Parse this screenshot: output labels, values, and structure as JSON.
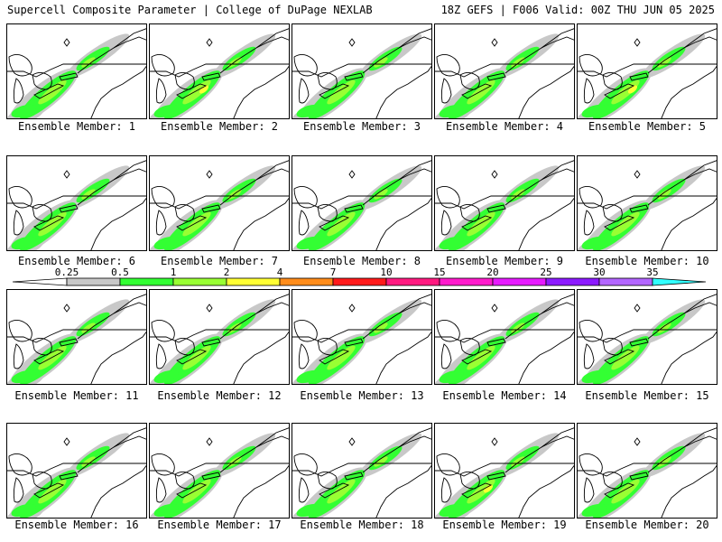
{
  "header": {
    "title_left": "Supercell Composite Parameter | College of DuPage NEXLAB",
    "title_right": "18Z GEFS | F006 Valid: 00Z THU JUN 05 2025"
  },
  "panel_label_prefix": "Ensemble Member:",
  "members": [
    {
      "number": "1",
      "label": "Ensemble Member: 1"
    },
    {
      "number": "2",
      "label": "Ensemble Member: 2"
    },
    {
      "number": "3",
      "label": "Ensemble Member: 3"
    },
    {
      "number": "4",
      "label": "Ensemble Member: 4"
    },
    {
      "number": "5",
      "label": "Ensemble Member: 5"
    },
    {
      "number": "6",
      "label": "Ensemble Member: 6"
    },
    {
      "number": "7",
      "label": "Ensemble Member: 7"
    },
    {
      "number": "8",
      "label": "Ensemble Member: 8"
    },
    {
      "number": "9",
      "label": "Ensemble Member: 9"
    },
    {
      "number": "10",
      "label": "Ensemble Member: 10"
    },
    {
      "number": "11",
      "label": "Ensemble Member: 11"
    },
    {
      "number": "12",
      "label": "Ensemble Member: 12"
    },
    {
      "number": "13",
      "label": "Ensemble Member: 13"
    },
    {
      "number": "14",
      "label": "Ensemble Member: 14"
    },
    {
      "number": "15",
      "label": "Ensemble Member: 15"
    },
    {
      "number": "16",
      "label": "Ensemble Member: 16"
    },
    {
      "number": "17",
      "label": "Ensemble Member: 17"
    },
    {
      "number": "18",
      "label": "Ensemble Member: 18"
    },
    {
      "number": "19",
      "label": "Ensemble Member: 19"
    },
    {
      "number": "20",
      "label": "Ensemble Member: 20"
    }
  ],
  "colorbar": {
    "ticks": [
      "0.25",
      "0.5",
      "1",
      "2",
      "4",
      "7",
      "10",
      "15",
      "20",
      "25",
      "30",
      "35"
    ],
    "colors": [
      "#c8c8c8",
      "#33ff33",
      "#99ff33",
      "#ffff33",
      "#ff8c1a",
      "#ff1a1a",
      "#ff1a80",
      "#ff1acc",
      "#e61aff",
      "#8c1aff",
      "#b366ff",
      "#33ffff"
    ],
    "low_end_color": "#ffffff"
  },
  "map_colors": {
    "gray": "#c8c8c8",
    "green": "#33ff33",
    "light_green": "#99ff33",
    "yellow": "#ffff33"
  }
}
